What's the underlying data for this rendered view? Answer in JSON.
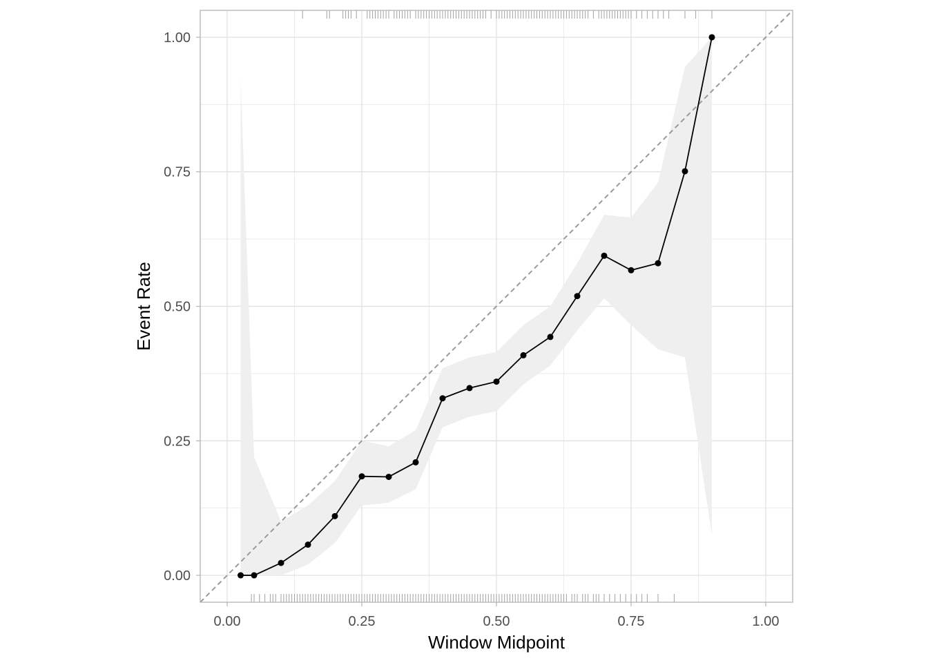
{
  "chart_data": {
    "type": "line",
    "title": "",
    "xlabel": "Window Midpoint",
    "ylabel": "Event Rate",
    "xlim": [
      -0.05,
      1.05
    ],
    "ylim": [
      -0.05,
      1.05
    ],
    "x_ticks": [
      0.0,
      0.25,
      0.5,
      0.75,
      1.0
    ],
    "x_tick_labels": [
      "0.00",
      "0.25",
      "0.50",
      "0.75",
      "1.00"
    ],
    "y_ticks": [
      0.0,
      0.25,
      0.5,
      0.75,
      1.0
    ],
    "y_tick_labels": [
      "0.00",
      "0.25",
      "0.50",
      "0.75",
      "1.00"
    ],
    "grid": true,
    "reference_line": {
      "style": "dashed",
      "from": [
        -0.05,
        -0.05
      ],
      "to": [
        1.05,
        1.05
      ],
      "color": "#9a9a9a"
    },
    "series": [
      {
        "name": "Event Rate",
        "color": "#000000",
        "points": [
          {
            "x": 0.025,
            "y": 0.0
          },
          {
            "x": 0.05,
            "y": 0.0
          },
          {
            "x": 0.1,
            "y": 0.023
          },
          {
            "x": 0.15,
            "y": 0.057
          },
          {
            "x": 0.2,
            "y": 0.11
          },
          {
            "x": 0.25,
            "y": 0.184
          },
          {
            "x": 0.3,
            "y": 0.183
          },
          {
            "x": 0.35,
            "y": 0.21
          },
          {
            "x": 0.4,
            "y": 0.329
          },
          {
            "x": 0.45,
            "y": 0.348
          },
          {
            "x": 0.5,
            "y": 0.36
          },
          {
            "x": 0.55,
            "y": 0.409
          },
          {
            "x": 0.6,
            "y": 0.443
          },
          {
            "x": 0.65,
            "y": 0.519
          },
          {
            "x": 0.7,
            "y": 0.594
          },
          {
            "x": 0.75,
            "y": 0.567
          },
          {
            "x": 0.8,
            "y": 0.58
          },
          {
            "x": 0.85,
            "y": 0.751
          },
          {
            "x": 0.9,
            "y": 1.0
          }
        ]
      }
    ],
    "confidence_band": {
      "color": "#efefef",
      "lower": [
        {
          "x": 0.025,
          "y": 0.0
        },
        {
          "x": 0.05,
          "y": 0.0
        },
        {
          "x": 0.1,
          "y": 0.0
        },
        {
          "x": 0.15,
          "y": 0.02
        },
        {
          "x": 0.2,
          "y": 0.06
        },
        {
          "x": 0.25,
          "y": 0.13
        },
        {
          "x": 0.3,
          "y": 0.135
        },
        {
          "x": 0.35,
          "y": 0.16
        },
        {
          "x": 0.4,
          "y": 0.275
        },
        {
          "x": 0.45,
          "y": 0.295
        },
        {
          "x": 0.5,
          "y": 0.305
        },
        {
          "x": 0.55,
          "y": 0.355
        },
        {
          "x": 0.6,
          "y": 0.39
        },
        {
          "x": 0.65,
          "y": 0.455
        },
        {
          "x": 0.7,
          "y": 0.515
        },
        {
          "x": 0.75,
          "y": 0.465
        },
        {
          "x": 0.8,
          "y": 0.42
        },
        {
          "x": 0.85,
          "y": 0.405
        },
        {
          "x": 0.9,
          "y": 0.075
        }
      ],
      "upper": [
        {
          "x": 0.025,
          "y": 0.925
        },
        {
          "x": 0.05,
          "y": 0.22
        },
        {
          "x": 0.1,
          "y": 0.1
        },
        {
          "x": 0.15,
          "y": 0.13
        },
        {
          "x": 0.2,
          "y": 0.175
        },
        {
          "x": 0.25,
          "y": 0.25
        },
        {
          "x": 0.3,
          "y": 0.24
        },
        {
          "x": 0.35,
          "y": 0.27
        },
        {
          "x": 0.4,
          "y": 0.385
        },
        {
          "x": 0.45,
          "y": 0.405
        },
        {
          "x": 0.5,
          "y": 0.415
        },
        {
          "x": 0.55,
          "y": 0.465
        },
        {
          "x": 0.6,
          "y": 0.5
        },
        {
          "x": 0.65,
          "y": 0.58
        },
        {
          "x": 0.7,
          "y": 0.67
        },
        {
          "x": 0.75,
          "y": 0.665
        },
        {
          "x": 0.8,
          "y": 0.73
        },
        {
          "x": 0.85,
          "y": 0.945
        },
        {
          "x": 0.9,
          "y": 1.0
        }
      ]
    },
    "rug_top": {
      "color": "#a0a0a0",
      "x": [
        0.14,
        0.185,
        0.19,
        0.215,
        0.22,
        0.225,
        0.23,
        0.24,
        0.26,
        0.265,
        0.27,
        0.275,
        0.28,
        0.285,
        0.29,
        0.295,
        0.3,
        0.31,
        0.315,
        0.32,
        0.325,
        0.33,
        0.335,
        0.34,
        0.35,
        0.355,
        0.36,
        0.365,
        0.37,
        0.375,
        0.38,
        0.385,
        0.39,
        0.395,
        0.4,
        0.405,
        0.41,
        0.415,
        0.42,
        0.425,
        0.43,
        0.435,
        0.44,
        0.445,
        0.45,
        0.455,
        0.46,
        0.465,
        0.47,
        0.475,
        0.48,
        0.49,
        0.5,
        0.505,
        0.51,
        0.515,
        0.52,
        0.525,
        0.53,
        0.535,
        0.54,
        0.545,
        0.55,
        0.555,
        0.56,
        0.565,
        0.57,
        0.575,
        0.58,
        0.585,
        0.59,
        0.595,
        0.6,
        0.605,
        0.61,
        0.615,
        0.62,
        0.625,
        0.63,
        0.635,
        0.64,
        0.645,
        0.65,
        0.655,
        0.66,
        0.665,
        0.67,
        0.68,
        0.69,
        0.695,
        0.7,
        0.705,
        0.71,
        0.715,
        0.72,
        0.725,
        0.73,
        0.735,
        0.74,
        0.745,
        0.75,
        0.76,
        0.77,
        0.78,
        0.79,
        0.8,
        0.81,
        0.82,
        0.85,
        0.87,
        0.9
      ]
    },
    "rug_bottom": {
      "color": "#a0a0a0",
      "x": [
        0.045,
        0.05,
        0.06,
        0.07,
        0.08,
        0.085,
        0.09,
        0.1,
        0.105,
        0.11,
        0.115,
        0.12,
        0.125,
        0.13,
        0.135,
        0.14,
        0.145,
        0.15,
        0.155,
        0.16,
        0.165,
        0.17,
        0.175,
        0.18,
        0.185,
        0.19,
        0.195,
        0.2,
        0.205,
        0.21,
        0.215,
        0.22,
        0.225,
        0.23,
        0.235,
        0.24,
        0.245,
        0.25,
        0.255,
        0.26,
        0.265,
        0.27,
        0.275,
        0.28,
        0.285,
        0.29,
        0.295,
        0.3,
        0.305,
        0.31,
        0.315,
        0.32,
        0.325,
        0.33,
        0.335,
        0.34,
        0.345,
        0.35,
        0.355,
        0.36,
        0.365,
        0.37,
        0.375,
        0.38,
        0.385,
        0.39,
        0.395,
        0.4,
        0.405,
        0.41,
        0.415,
        0.42,
        0.425,
        0.43,
        0.435,
        0.44,
        0.445,
        0.45,
        0.455,
        0.46,
        0.465,
        0.47,
        0.475,
        0.48,
        0.485,
        0.49,
        0.495,
        0.5,
        0.505,
        0.51,
        0.515,
        0.52,
        0.525,
        0.53,
        0.535,
        0.54,
        0.545,
        0.55,
        0.555,
        0.56,
        0.565,
        0.57,
        0.575,
        0.58,
        0.585,
        0.59,
        0.595,
        0.6,
        0.605,
        0.61,
        0.615,
        0.62,
        0.625,
        0.63,
        0.64,
        0.645,
        0.65,
        0.66,
        0.665,
        0.67,
        0.68,
        0.685,
        0.69,
        0.7,
        0.71,
        0.72,
        0.73,
        0.74,
        0.75,
        0.76,
        0.77,
        0.78,
        0.8,
        0.83
      ]
    }
  }
}
